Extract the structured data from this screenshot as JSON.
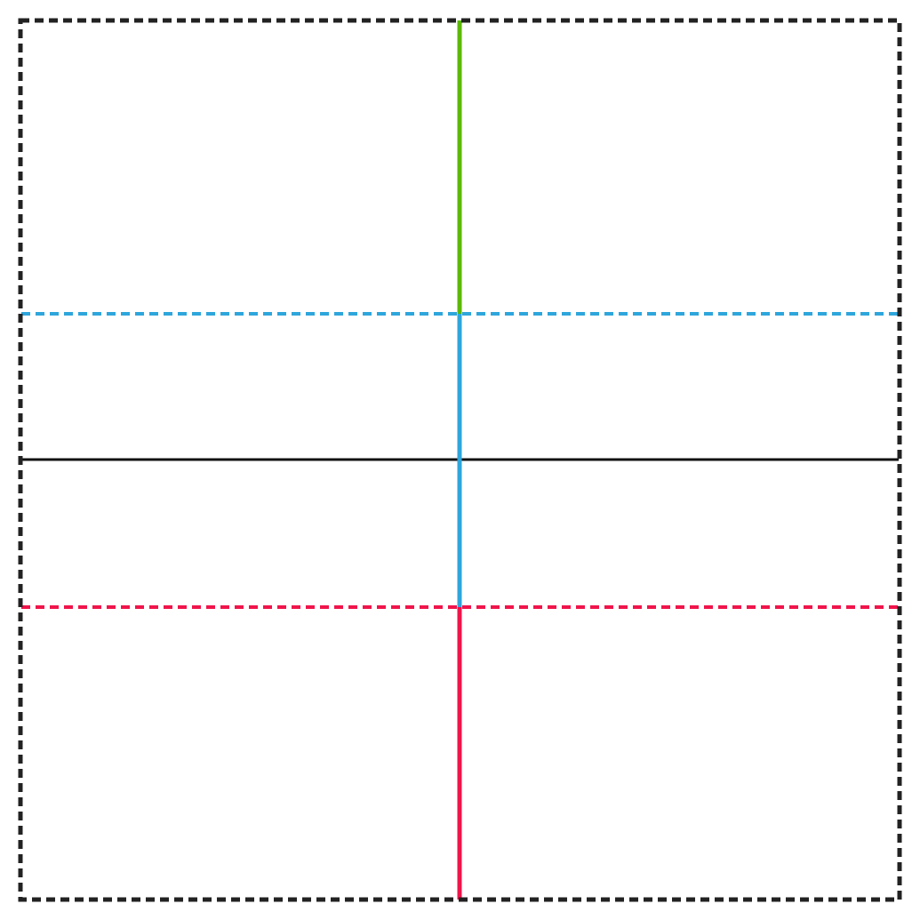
{
  "diagram": {
    "colors": {
      "background": "#ffffff",
      "frame": "#222222",
      "green": "#5cb800",
      "blue": "#2ea6dc",
      "red": "#f0144a",
      "black": "#111111"
    },
    "lines": [
      {
        "id": "frame",
        "style": "dashed",
        "color": "frame"
      },
      {
        "id": "horizontal-upper-dashed",
        "style": "dashed",
        "color": "blue"
      },
      {
        "id": "horizontal-center-solid",
        "style": "solid",
        "color": "black"
      },
      {
        "id": "horizontal-lower-dashed",
        "style": "dashed",
        "color": "red"
      },
      {
        "id": "vertical-top-segment",
        "style": "solid",
        "color": "green"
      },
      {
        "id": "vertical-middle-segment",
        "style": "solid",
        "color": "blue"
      },
      {
        "id": "vertical-bottom-segment",
        "style": "solid",
        "color": "red"
      }
    ]
  }
}
